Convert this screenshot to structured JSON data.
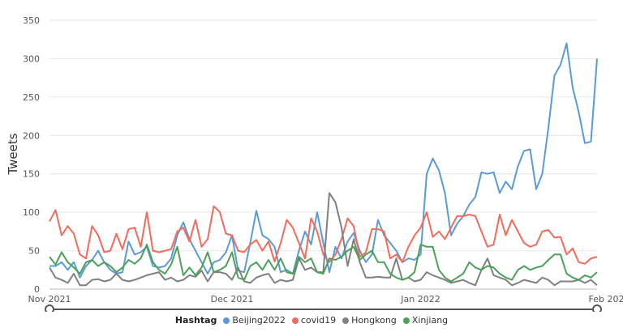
{
  "chart_data": {
    "type": "line",
    "ylabel": "Tweets",
    "ylim": [
      0,
      350
    ],
    "yticks": [
      0,
      50,
      100,
      150,
      200,
      250,
      300,
      350
    ],
    "xticks": [
      {
        "label": "Nov 2021",
        "index": 0
      },
      {
        "label": "Dec 2021",
        "index": 30
      },
      {
        "label": "Jan 2022",
        "index": 61
      },
      {
        "label": "Feb 2022",
        "index": 92
      }
    ],
    "grid": true,
    "legend_title": "Hashtag",
    "legend_position": "bottom",
    "series": [
      {
        "name": "Beijing2022",
        "color": "#5B9BD5",
        "values": [
          30,
          30,
          35,
          25,
          35,
          15,
          30,
          38,
          50,
          35,
          25,
          20,
          22,
          62,
          45,
          48,
          55,
          30,
          28,
          30,
          40,
          70,
          87,
          65,
          50,
          35,
          20,
          35,
          38,
          48,
          70,
          24,
          22,
          60,
          102,
          70,
          65,
          55,
          22,
          25,
          20,
          50,
          75,
          58,
          100,
          60,
          22,
          55,
          40,
          62,
          73,
          50,
          35,
          45,
          90,
          70,
          60,
          50,
          35,
          40,
          38,
          45,
          150,
          170,
          155,
          125,
          70,
          85,
          95,
          110,
          120,
          152,
          150,
          152,
          125,
          140,
          130,
          160,
          180,
          182,
          130,
          150,
          210,
          278,
          292,
          320,
          262,
          230,
          190,
          192,
          300
        ]
      },
      {
        "name": "covid19",
        "color": "#F26B5B",
        "values": [
          88,
          103,
          70,
          82,
          72,
          45,
          40,
          82,
          70,
          48,
          50,
          72,
          52,
          78,
          80,
          55,
          100,
          50,
          48,
          50,
          52,
          75,
          80,
          62,
          90,
          55,
          65,
          108,
          100,
          72,
          70,
          50,
          48,
          58,
          64,
          50,
          62,
          36,
          60,
          90,
          80,
          60,
          40,
          92,
          75,
          45,
          35,
          45,
          65,
          92,
          82,
          42,
          48,
          78,
          78,
          75,
          40,
          45,
          35,
          55,
          70,
          80,
          100,
          68,
          75,
          65,
          80,
          95,
          95,
          97,
          95,
          75,
          55,
          58,
          97,
          70,
          90,
          75,
          60,
          55,
          58,
          75,
          77,
          67,
          68,
          45,
          53,
          35,
          33,
          40,
          42
        ]
      },
      {
        "name": "Hongkong",
        "color": "#808080",
        "values": [
          28,
          15,
          12,
          8,
          20,
          5,
          5,
          12,
          13,
          10,
          12,
          20,
          12,
          10,
          12,
          15,
          18,
          20,
          22,
          12,
          15,
          10,
          12,
          18,
          16,
          24,
          10,
          22,
          22,
          20,
          12,
          28,
          10,
          8,
          15,
          18,
          20,
          8,
          12,
          10,
          12,
          40,
          25,
          28,
          22,
          22,
          125,
          113,
          80,
          30,
          65,
          35,
          15,
          15,
          16,
          15,
          15,
          40,
          12,
          15,
          10,
          12,
          22,
          18,
          15,
          12,
          8,
          10,
          12,
          8,
          5,
          25,
          40,
          18,
          15,
          12,
          5,
          8,
          12,
          10,
          8,
          15,
          12,
          5,
          10,
          10,
          10,
          12,
          8,
          12,
          5
        ]
      },
      {
        "name": "Xinjiang",
        "color": "#4CA15A",
        "values": [
          42,
          32,
          48,
          35,
          28,
          20,
          35,
          38,
          30,
          35,
          30,
          22,
          28,
          38,
          33,
          40,
          58,
          35,
          25,
          20,
          32,
          55,
          18,
          28,
          18,
          28,
          48,
          22,
          25,
          30,
          48,
          15,
          12,
          30,
          35,
          25,
          38,
          25,
          40,
          22,
          20,
          42,
          35,
          40,
          22,
          20,
          40,
          38,
          42,
          50,
          55,
          38,
          45,
          50,
          35,
          35,
          20,
          15,
          12,
          15,
          22,
          58,
          55,
          55,
          25,
          15,
          10,
          15,
          20,
          35,
          28,
          25,
          30,
          28,
          20,
          15,
          12,
          25,
          30,
          25,
          28,
          30,
          38,
          45,
          45,
          20,
          15,
          12,
          18,
          15,
          22
        ]
      }
    ]
  }
}
